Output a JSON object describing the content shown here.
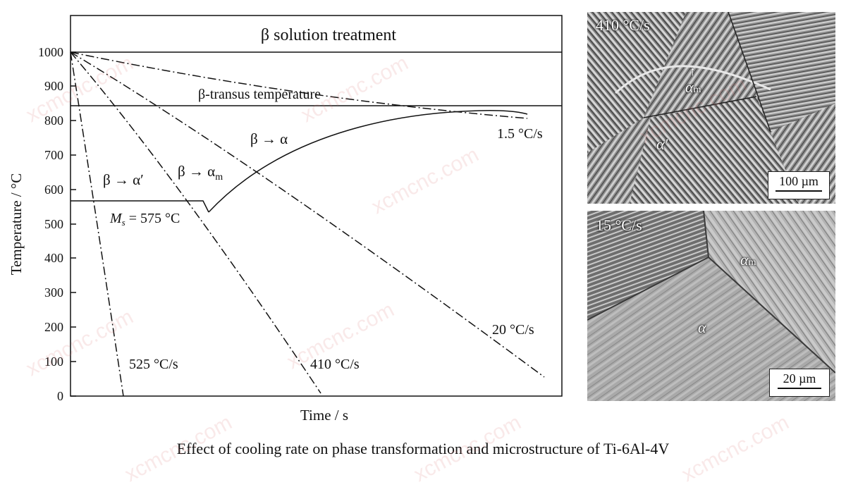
{
  "diagram": {
    "y_axis_label": "Temperature / °C",
    "x_axis_label": "Time / s",
    "y_ticks": [
      "0",
      "100",
      "200",
      "300",
      "400",
      "500",
      "600",
      "700",
      "800",
      "900",
      "1000"
    ],
    "band_label": "β solution treatment",
    "transus_label": "β-transus temperature",
    "ms_label_symbol": "M",
    "ms_label_sub": "s",
    "ms_label_rest": " = 575 °C",
    "phase_labels": {
      "b_to_a": "β → α",
      "b_to_am_main": "β → α",
      "b_to_am_sub": "m",
      "b_to_aprime": "β → α′"
    },
    "curve_labels": {
      "r525": "525 °C/s",
      "r410": "410 °C/s",
      "r20": "20 °C/s",
      "r1_5": "1.5 °C/s"
    }
  },
  "micrographs": {
    "top": {
      "rate": "410 °C/s",
      "phase_am_main": "α",
      "phase_am_sub": "m",
      "phase_aprime": "α′",
      "scale": "100 µm"
    },
    "bottom": {
      "rate": "15 °C/s",
      "phase_am_main": "α",
      "phase_am_sub": "m",
      "phase_a": "α",
      "scale": "20 µm"
    }
  },
  "caption": "Effect of cooling rate on phase transformation and microstructure of Ti-6Al-4V",
  "watermark": "xcmcnc.com"
}
